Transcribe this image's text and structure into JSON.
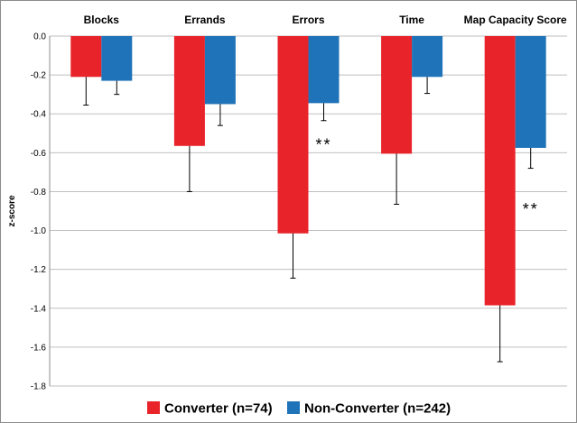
{
  "chart_data": {
    "type": "bar",
    "categories": [
      "Blocks",
      "Errands",
      "Errors",
      "Time",
      "Map Capacity Score"
    ],
    "ylabel": "z-score",
    "ylim": [
      -1.8,
      0.0
    ],
    "yticks": [
      "0.0",
      "-0.2",
      "-0.4",
      "-0.6",
      "-0.8",
      "-1.0",
      "-1.2",
      "-1.4",
      "-1.6",
      "-1.8"
    ],
    "grid": true,
    "legend_position": "bottom",
    "series": [
      {
        "name": "Converter (n=74)",
        "color": "#e8232a",
        "values": [
          -0.21,
          -0.565,
          -1.015,
          -0.605,
          -1.385
        ],
        "error": [
          0.145,
          0.235,
          0.23,
          0.26,
          0.29
        ]
      },
      {
        "name": "Non-Converter (n=242)",
        "color": "#1f73b8",
        "values": [
          -0.23,
          -0.35,
          -0.345,
          -0.21,
          -0.575
        ],
        "error": [
          0.07,
          0.11,
          0.09,
          0.085,
          0.105
        ]
      }
    ],
    "annotations": [
      {
        "category": "Errors",
        "text": "**",
        "value": -0.56
      },
      {
        "category": "Map Capacity Score",
        "text": "**",
        "value": -0.89
      }
    ]
  }
}
